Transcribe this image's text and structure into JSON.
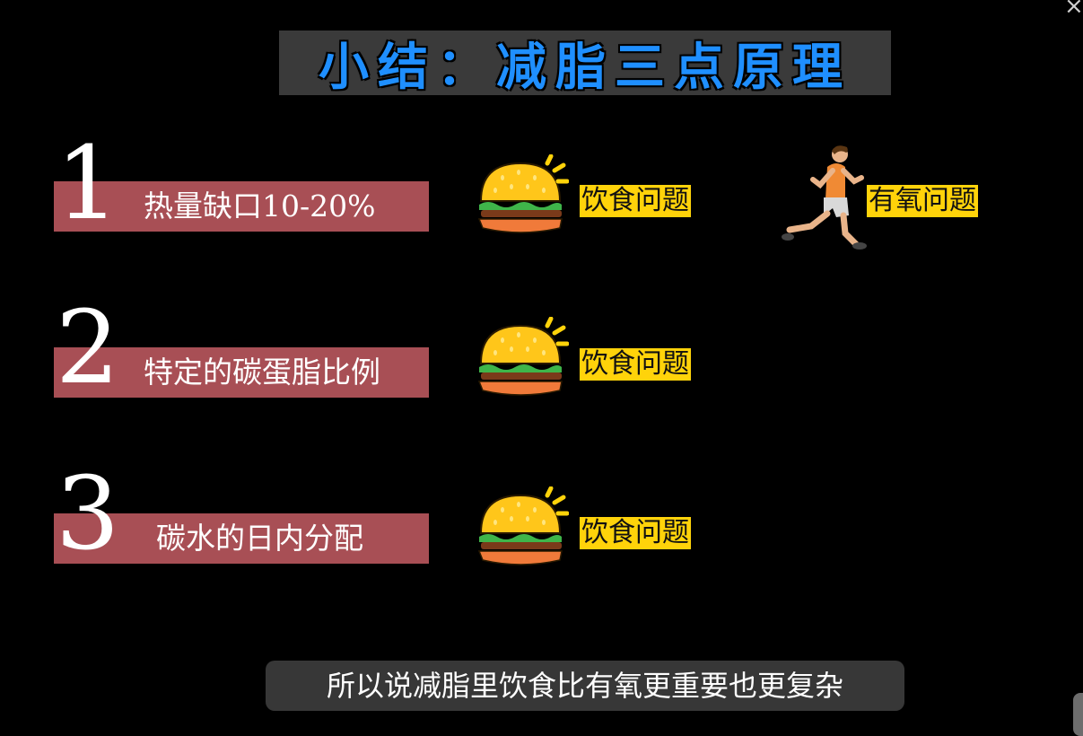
{
  "title": "小结：减脂三点原理",
  "rows": [
    {
      "number": "1",
      "label": "热量缺口10-20%",
      "tag": "饮食问题"
    },
    {
      "number": "2",
      "label": "特定的碳蛋脂比例",
      "tag": "饮食问题"
    },
    {
      "number": "3",
      "label": "碳水的日内分配",
      "tag": "饮食问题"
    }
  ],
  "cardio_tag": "有氧问题",
  "subtitle": "所以说减脂里饮食比有氧更重要也更复杂",
  "close_glyph": "×",
  "icons": {
    "food": "burger-icon",
    "cardio": "running-man-icon",
    "close": "close-icon"
  },
  "colors": {
    "background": "#000000",
    "title_text": "#1f8fff",
    "title_bg": "#3a3a3a",
    "row_bar": "#a84f55",
    "tag_bg": "#ffd30a"
  }
}
